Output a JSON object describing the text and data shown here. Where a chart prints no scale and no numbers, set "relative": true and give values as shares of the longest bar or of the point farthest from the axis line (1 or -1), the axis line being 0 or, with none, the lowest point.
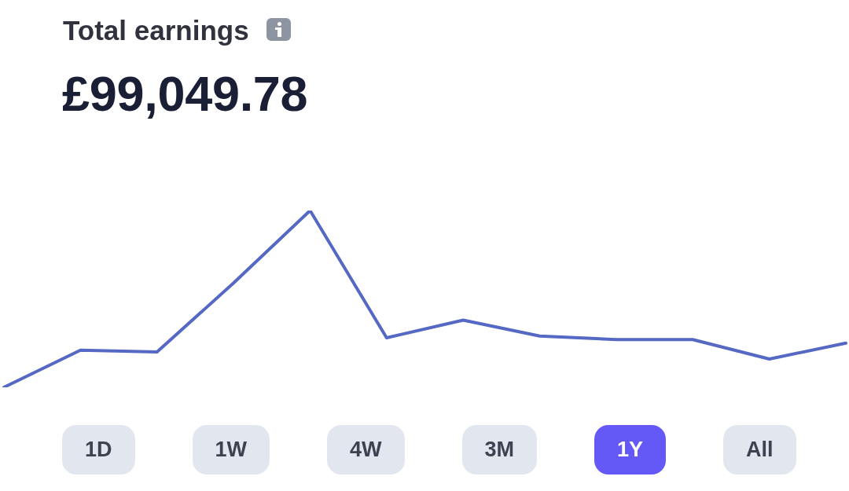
{
  "chart_data": {
    "type": "line",
    "title": "Total earnings",
    "subtitle": "£99,049.78",
    "categories": [
      null,
      null,
      null,
      null,
      null,
      null,
      null,
      null,
      null,
      null,
      null,
      null
    ],
    "values": [
      0,
      0.21,
      0.2,
      0.59,
      1,
      0.28,
      0.38,
      0.29,
      0.27,
      0.27,
      0.16,
      0.25
    ],
    "color": "#5468c4",
    "relative": true,
    "marker": "none",
    "line_style": "solid",
    "legend": false,
    "annotations": [
      "1D",
      "1W",
      "4W",
      "3M",
      "1Y",
      "All"
    ]
  }
}
